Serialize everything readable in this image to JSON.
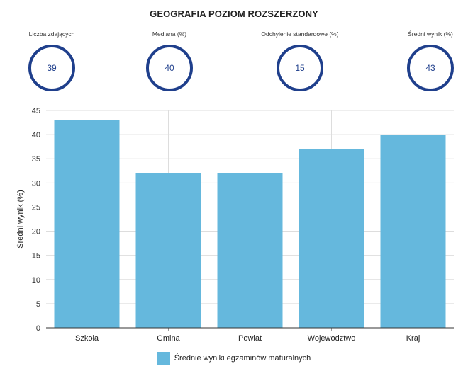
{
  "header": {
    "title": "GEOGRAFIA POZIOM ROZSZERZONY"
  },
  "stats": [
    {
      "label": "Liczba zdających",
      "value": "39"
    },
    {
      "label": "Mediana (%)",
      "value": "40"
    },
    {
      "label": "Odchylenie standardowe (%)",
      "value": "15"
    },
    {
      "label": "Średni wynik (%)",
      "value": "43"
    }
  ],
  "colors": {
    "bar": "#65b8dd",
    "ring": "#1f3f8c",
    "grid": "#dddddd",
    "axis": "#333333"
  },
  "chart_data": {
    "type": "bar",
    "categories": [
      "Szkoła",
      "Gmina",
      "Powiat",
      "Wojewodztwo",
      "Kraj"
    ],
    "series": [
      {
        "name": "Średnie wyniki egzaminów maturalnych",
        "values": [
          43,
          32,
          32,
          37,
          40
        ]
      }
    ],
    "ylabel": "Średni wynik (%)",
    "xlabel": "",
    "ylim": [
      0,
      45
    ],
    "yticks": [
      0,
      5,
      10,
      15,
      20,
      25,
      30,
      35,
      40,
      45
    ],
    "grid": true,
    "legend": "bottom"
  }
}
